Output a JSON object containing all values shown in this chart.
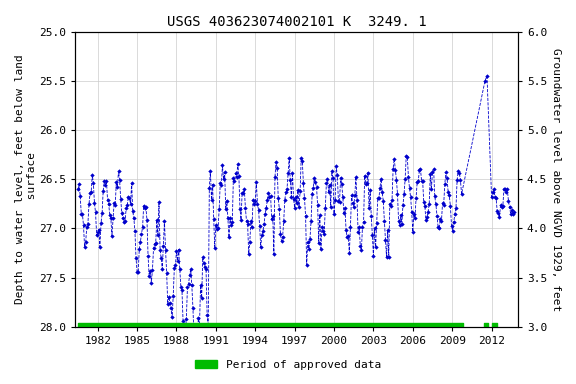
{
  "title": "USGS 403623074002101 K  3249. 1",
  "ylabel_left": "Depth to water level, feet below land\n surface",
  "ylabel_right": "Groundwater level above NGVD 1929, feet",
  "ylim_left": [
    28.0,
    25.0
  ],
  "ylim_right": [
    3.0,
    6.0
  ],
  "yticks_left": [
    25.0,
    25.5,
    26.0,
    26.5,
    27.0,
    27.5,
    28.0
  ],
  "yticks_right": [
    3.0,
    3.5,
    4.0,
    4.5,
    5.0,
    5.5,
    6.0
  ],
  "xlim": [
    1980.3,
    2014.0
  ],
  "xticks": [
    1982,
    1985,
    1988,
    1991,
    1994,
    1997,
    2000,
    2003,
    2006,
    2009,
    2012
  ],
  "legend_label": "Period of approved data",
  "legend_color": "#00bb00",
  "line_color": "#0000cc",
  "marker_color": "#0000cc",
  "bg_color": "#ffffff",
  "grid_color": "#cccccc",
  "title_fontsize": 10,
  "axis_label_fontsize": 8,
  "tick_fontsize": 8
}
